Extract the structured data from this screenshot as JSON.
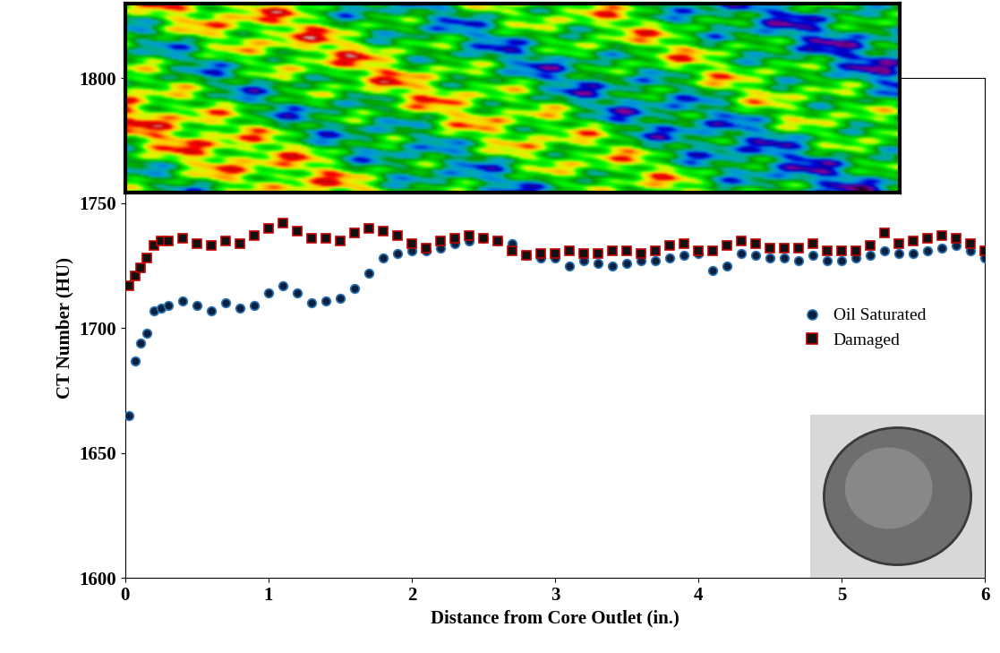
{
  "chart_data": {
    "type": "scatter",
    "x_label": "Distance from Core Outlet (in.)",
    "y_label": "CT Number (HU)",
    "xlim": [
      0,
      6
    ],
    "xticks": [
      0,
      1,
      2,
      3,
      4,
      5,
      6
    ],
    "ylim": [
      1600,
      1800
    ],
    "yticks": [
      1600,
      1650,
      1700,
      1750,
      1800
    ],
    "grid": false,
    "legend": "center right",
    "series": [
      {
        "name": "Oil Saturated",
        "color": "#2e75b6",
        "marker": "o",
        "x": [
          0.03,
          0.07,
          0.11,
          0.15,
          0.2,
          0.25,
          0.3,
          0.4,
          0.5,
          0.6,
          0.7,
          0.8,
          0.9,
          1.0,
          1.1,
          1.2,
          1.3,
          1.4,
          1.5,
          1.6,
          1.7,
          1.8,
          1.9,
          2.0,
          2.1,
          2.2,
          2.3,
          2.4,
          2.5,
          2.6,
          2.7,
          2.8,
          2.9,
          3.0,
          3.1,
          3.2,
          3.3,
          3.4,
          3.5,
          3.6,
          3.7,
          3.8,
          3.9,
          4.0,
          4.1,
          4.2,
          4.3,
          4.4,
          4.5,
          4.6,
          4.7,
          4.8,
          4.9,
          5.0,
          5.1,
          5.2,
          5.3,
          5.4,
          5.5,
          5.6,
          5.7,
          5.8,
          5.9,
          6.0
        ],
        "values": [
          1665,
          1687,
          1694,
          1698,
          1707,
          1708,
          1709,
          1711,
          1709,
          1707,
          1710,
          1708,
          1709,
          1714,
          1717,
          1714,
          1710,
          1711,
          1712,
          1716,
          1722,
          1728,
          1730,
          1731,
          1731,
          1732,
          1734,
          1735,
          1736,
          1735,
          1734,
          1729,
          1728,
          1728,
          1725,
          1727,
          1726,
          1725,
          1726,
          1727,
          1727,
          1728,
          1729,
          1730,
          1723,
          1725,
          1730,
          1729,
          1728,
          1728,
          1727,
          1729,
          1727,
          1727,
          1728,
          1729,
          1731,
          1730,
          1730,
          1731,
          1732,
          1733,
          1731,
          1728
        ]
      },
      {
        "name": "Damaged",
        "color": "#c00000",
        "marker": "s",
        "x": [
          0.03,
          0.07,
          0.11,
          0.15,
          0.2,
          0.25,
          0.3,
          0.4,
          0.5,
          0.6,
          0.7,
          0.8,
          0.9,
          1.0,
          1.1,
          1.2,
          1.3,
          1.4,
          1.5,
          1.6,
          1.7,
          1.8,
          1.9,
          2.0,
          2.1,
          2.2,
          2.3,
          2.4,
          2.5,
          2.6,
          2.7,
          2.8,
          2.9,
          3.0,
          3.1,
          3.2,
          3.3,
          3.4,
          3.5,
          3.6,
          3.7,
          3.8,
          3.9,
          4.0,
          4.1,
          4.2,
          4.3,
          4.4,
          4.5,
          4.6,
          4.7,
          4.8,
          4.9,
          5.0,
          5.1,
          5.2,
          5.3,
          5.4,
          5.5,
          5.6,
          5.7,
          5.8,
          5.9,
          6.0
        ],
        "values": [
          1717,
          1721,
          1724,
          1728,
          1733,
          1735,
          1735,
          1736,
          1734,
          1733,
          1735,
          1734,
          1737,
          1740,
          1742,
          1739,
          1736,
          1736,
          1735,
          1738,
          1740,
          1739,
          1737,
          1734,
          1732,
          1735,
          1736,
          1737,
          1736,
          1735,
          1731,
          1729,
          1730,
          1730,
          1731,
          1730,
          1730,
          1731,
          1731,
          1730,
          1731,
          1733,
          1734,
          1731,
          1731,
          1733,
          1735,
          1734,
          1732,
          1732,
          1732,
          1734,
          1731,
          1731,
          1731,
          1733,
          1738,
          1734,
          1735,
          1736,
          1737,
          1736,
          1734,
          1731
        ]
      }
    ]
  }
}
